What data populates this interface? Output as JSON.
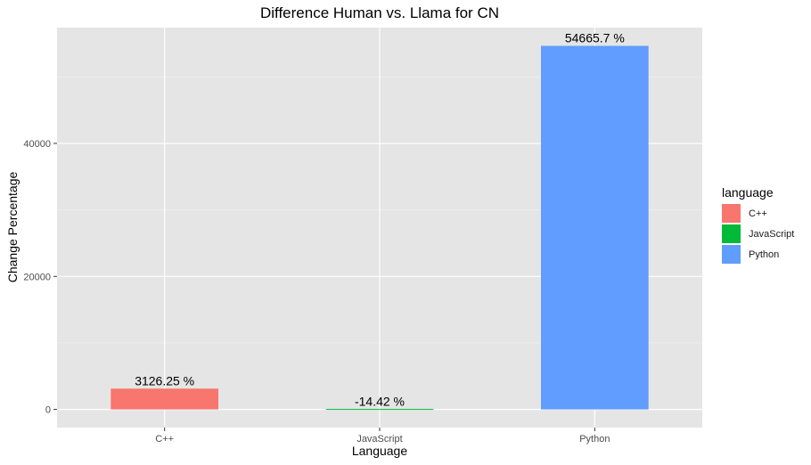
{
  "chart_data": {
    "type": "bar",
    "title": "Difference Human vs. Llama for CN",
    "xlabel": "Language",
    "ylabel": "Change Percentage",
    "categories": [
      "C++",
      "JavaScript",
      "Python"
    ],
    "values": [
      3126.25,
      -14.42,
      54665.7
    ],
    "data_labels": [
      "3126.25 %",
      "-14.42 %",
      "54665.7 %"
    ],
    "colors": [
      "#F8766D",
      "#00BA38",
      "#619CFF"
    ],
    "ylim": [
      -2733,
      57412
    ],
    "yticks": [
      0,
      20000,
      40000
    ],
    "ytick_labels": [
      "0",
      "20000",
      "40000"
    ],
    "grid": true,
    "legend": {
      "title": "language",
      "position": "right",
      "entries": [
        "C++",
        "JavaScript",
        "Python"
      ]
    }
  }
}
